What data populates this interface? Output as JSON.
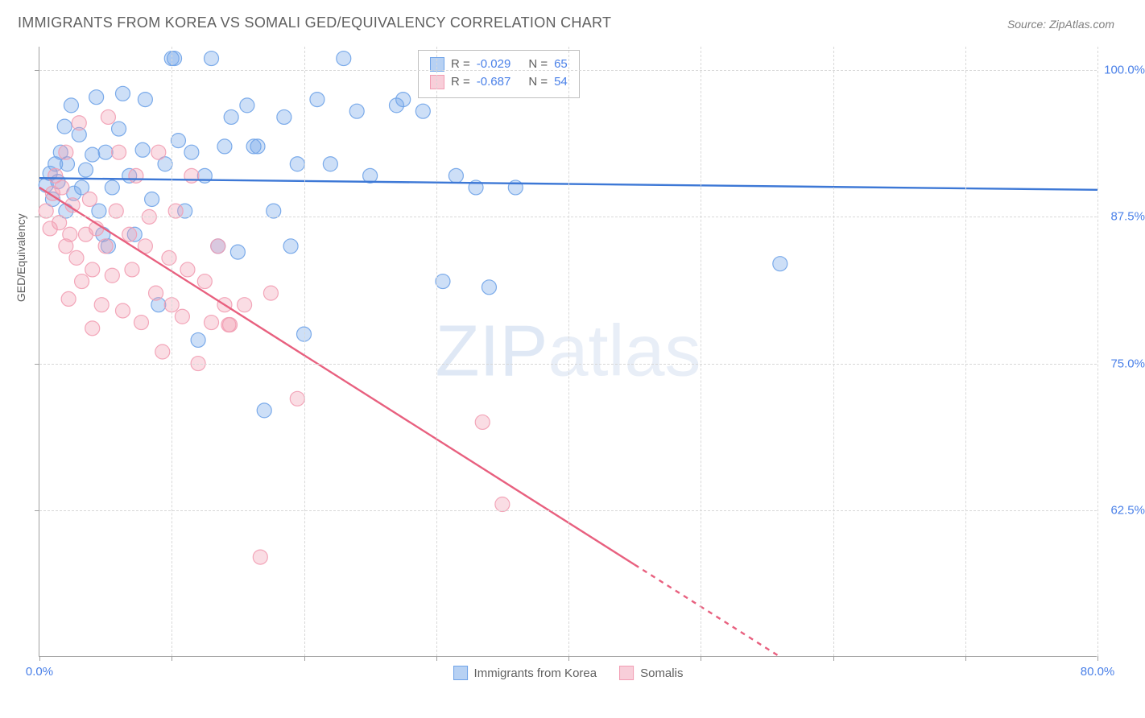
{
  "title": "IMMIGRANTS FROM KOREA VS SOMALI GED/EQUIVALENCY CORRELATION CHART",
  "source_label": "Source: ZipAtlas.com",
  "watermark_zip": "ZIP",
  "watermark_atlas": "atlas",
  "y_axis_label": "GED/Equivalency",
  "chart": {
    "type": "scatter",
    "background_color": "#ffffff",
    "grid_color": "#d8d8d8",
    "axis_color": "#a0a0a0",
    "xlim": [
      0,
      80
    ],
    "ylim": [
      50,
      102
    ],
    "x_tick_positions": [
      0,
      10,
      20,
      30,
      40,
      50,
      60,
      70,
      80
    ],
    "x_tick_labels_shown": {
      "0": "0.0%",
      "80": "80.0%"
    },
    "y_tick_positions": [
      62.5,
      75.0,
      87.5,
      100.0
    ],
    "y_tick_labels": [
      "62.5%",
      "75.0%",
      "87.5%",
      "100.0%"
    ],
    "marker_radius": 9,
    "marker_fill_opacity": 0.35,
    "marker_stroke_opacity": 0.9,
    "marker_stroke_width": 1.2,
    "trend_line_width": 2.4
  },
  "series": [
    {
      "name": "Immigrants from Korea",
      "color": "#6fa3e8",
      "line_color": "#3d78d6",
      "R": "-0.029",
      "N": "65",
      "trend": {
        "x1": 0,
        "y1": 90.8,
        "x2": 80,
        "y2": 89.8,
        "dash_from_x": null
      },
      "points": [
        [
          0.5,
          90.2
        ],
        [
          0.8,
          91.2
        ],
        [
          1.0,
          89.0
        ],
        [
          1.2,
          92.0
        ],
        [
          1.4,
          90.5
        ],
        [
          1.6,
          93.0
        ],
        [
          1.9,
          95.2
        ],
        [
          2.1,
          92.0
        ],
        [
          2.4,
          97.0
        ],
        [
          2.6,
          89.5
        ],
        [
          3.0,
          94.5
        ],
        [
          3.2,
          90.0
        ],
        [
          3.5,
          91.5
        ],
        [
          4.0,
          92.8
        ],
        [
          4.3,
          97.7
        ],
        [
          4.5,
          88.0
        ],
        [
          5.0,
          93.0
        ],
        [
          5.2,
          85.0
        ],
        [
          5.5,
          90.0
        ],
        [
          6.0,
          95.0
        ],
        [
          6.3,
          98.0
        ],
        [
          6.8,
          91.0
        ],
        [
          7.2,
          86.0
        ],
        [
          7.8,
          93.2
        ],
        [
          8.0,
          97.5
        ],
        [
          8.5,
          89.0
        ],
        [
          9.0,
          80.0
        ],
        [
          9.5,
          92.0
        ],
        [
          10.0,
          101.0
        ],
        [
          10.2,
          101.0
        ],
        [
          10.5,
          94.0
        ],
        [
          11.0,
          88.0
        ],
        [
          11.5,
          93.0
        ],
        [
          12.0,
          77.0
        ],
        [
          12.5,
          91.0
        ],
        [
          13.0,
          101.0
        ],
        [
          13.5,
          85.0
        ],
        [
          14.0,
          93.5
        ],
        [
          14.5,
          96.0
        ],
        [
          15.0,
          84.5
        ],
        [
          15.7,
          97.0
        ],
        [
          16.2,
          93.5
        ],
        [
          16.5,
          93.5
        ],
        [
          17.0,
          71.0
        ],
        [
          17.7,
          88.0
        ],
        [
          18.5,
          96.0
        ],
        [
          19.0,
          85.0
        ],
        [
          19.5,
          92.0
        ],
        [
          20.0,
          77.5
        ],
        [
          21.0,
          97.5
        ],
        [
          22.0,
          92.0
        ],
        [
          23.0,
          101.0
        ],
        [
          24.0,
          96.5
        ],
        [
          25.0,
          91.0
        ],
        [
          27.0,
          97.0
        ],
        [
          27.5,
          97.5
        ],
        [
          29.0,
          96.5
        ],
        [
          30.5,
          82.0
        ],
        [
          31.5,
          91.0
        ],
        [
          33.0,
          90.0
        ],
        [
          34.0,
          81.5
        ],
        [
          36.0,
          90.0
        ],
        [
          56.0,
          83.5
        ],
        [
          2.0,
          88.0
        ],
        [
          4.8,
          86.0
        ]
      ]
    },
    {
      "name": "Somalis",
      "color": "#f29db3",
      "line_color": "#e8607f",
      "R": "-0.687",
      "N": "54",
      "trend": {
        "x1": 0,
        "y1": 90.0,
        "x2": 56,
        "y2": 50.0,
        "dash_from_x": 45
      },
      "points": [
        [
          0.5,
          88.0
        ],
        [
          0.8,
          86.5
        ],
        [
          1.0,
          89.5
        ],
        [
          1.2,
          91.0
        ],
        [
          1.5,
          87.0
        ],
        [
          1.7,
          90.0
        ],
        [
          2.0,
          85.0
        ],
        [
          2.0,
          93.0
        ],
        [
          2.3,
          86.0
        ],
        [
          2.5,
          88.5
        ],
        [
          2.8,
          84.0
        ],
        [
          3.0,
          95.5
        ],
        [
          3.2,
          82.0
        ],
        [
          3.5,
          86.0
        ],
        [
          3.8,
          89.0
        ],
        [
          4.0,
          83.0
        ],
        [
          4.3,
          86.5
        ],
        [
          4.7,
          80.0
        ],
        [
          5.0,
          85.0
        ],
        [
          5.2,
          96.0
        ],
        [
          5.5,
          82.5
        ],
        [
          5.8,
          88.0
        ],
        [
          6.0,
          93.0
        ],
        [
          6.3,
          79.5
        ],
        [
          6.8,
          86.0
        ],
        [
          7.0,
          83.0
        ],
        [
          7.3,
          91.0
        ],
        [
          7.7,
          78.5
        ],
        [
          8.0,
          85.0
        ],
        [
          8.3,
          87.5
        ],
        [
          8.8,
          81.0
        ],
        [
          9.0,
          93.0
        ],
        [
          9.3,
          76.0
        ],
        [
          9.8,
          84.0
        ],
        [
          10.0,
          80.0
        ],
        [
          10.3,
          88.0
        ],
        [
          10.8,
          79.0
        ],
        [
          11.2,
          83.0
        ],
        [
          11.5,
          91.0
        ],
        [
          12.0,
          75.0
        ],
        [
          12.5,
          82.0
        ],
        [
          13.0,
          78.5
        ],
        [
          13.5,
          85.0
        ],
        [
          14.0,
          80.0
        ],
        [
          14.3,
          78.3
        ],
        [
          14.4,
          78.3
        ],
        [
          15.5,
          80.0
        ],
        [
          16.7,
          58.5
        ],
        [
          17.5,
          81.0
        ],
        [
          19.5,
          72.0
        ],
        [
          33.5,
          70.0
        ],
        [
          35.0,
          63.0
        ],
        [
          2.2,
          80.5
        ],
        [
          4.0,
          78.0
        ]
      ]
    }
  ],
  "legend_top": {
    "R_prefix": "R = ",
    "N_prefix": "N = "
  },
  "legend_bottom": {
    "label_a": "Immigrants from Korea",
    "label_b": "Somalis"
  }
}
